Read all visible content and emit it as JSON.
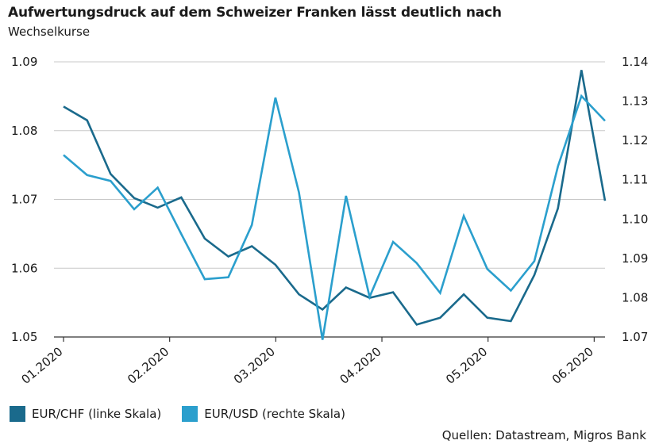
{
  "header": {
    "title": "Aufwertungsdruck auf dem Schweizer Franken lässt deutlich nach",
    "subtitle": "Wechselkurse"
  },
  "source": "Quellen: Datastream, Migros Bank",
  "colors": {
    "eurchf": "#1a6a8c",
    "eurusd": "#2b9fcd",
    "grid": "#c8c8c8",
    "axis": "#333333"
  },
  "chart_data": {
    "type": "line",
    "title": "Aufwertungsdruck auf dem Schweizer Franken lässt deutlich nach",
    "subtitle": "Wechselkurse",
    "x_tick_labels": [
      "01.2020",
      "02.2020",
      "03.2020",
      "04.2020",
      "05.2020",
      "06.2020"
    ],
    "y_left": {
      "ylim": [
        1.05,
        1.09
      ],
      "ticks": [
        "1.05",
        "1.06",
        "1.07",
        "1.08",
        "1.09"
      ]
    },
    "y_right": {
      "ylim": [
        1.07,
        1.14
      ],
      "ticks": [
        "1.07",
        "1.08",
        "1.09",
        "1.10",
        "1.11",
        "1.12",
        "1.13",
        "1.14"
      ]
    },
    "grid": "horizontal",
    "legend_position": "bottom-left",
    "series": [
      {
        "name": "EUR/CHF (linke Skala)",
        "axis": "left",
        "values": [
          1.0835,
          1.0815,
          1.0737,
          1.0702,
          1.0688,
          1.0703,
          1.0643,
          1.0617,
          1.0632,
          1.0605,
          1.0562,
          1.054,
          1.0572,
          1.0557,
          1.0565,
          1.0518,
          1.0528,
          1.0562,
          1.0528,
          1.0523,
          1.059,
          1.0687,
          1.0888,
          1.0698
        ]
      },
      {
        "name": "EUR/USD (rechte Skala)",
        "axis": "right",
        "values": [
          1.1163,
          1.1112,
          1.1097,
          1.1025,
          1.108,
          1.0962,
          1.0847,
          1.0852,
          1.0985,
          1.1309,
          1.1068,
          1.0693,
          1.1059,
          1.0802,
          1.0942,
          1.0888,
          1.0812,
          1.1008,
          1.0873,
          1.0818,
          1.0893,
          1.1134,
          1.1313,
          1.125
        ]
      }
    ]
  }
}
